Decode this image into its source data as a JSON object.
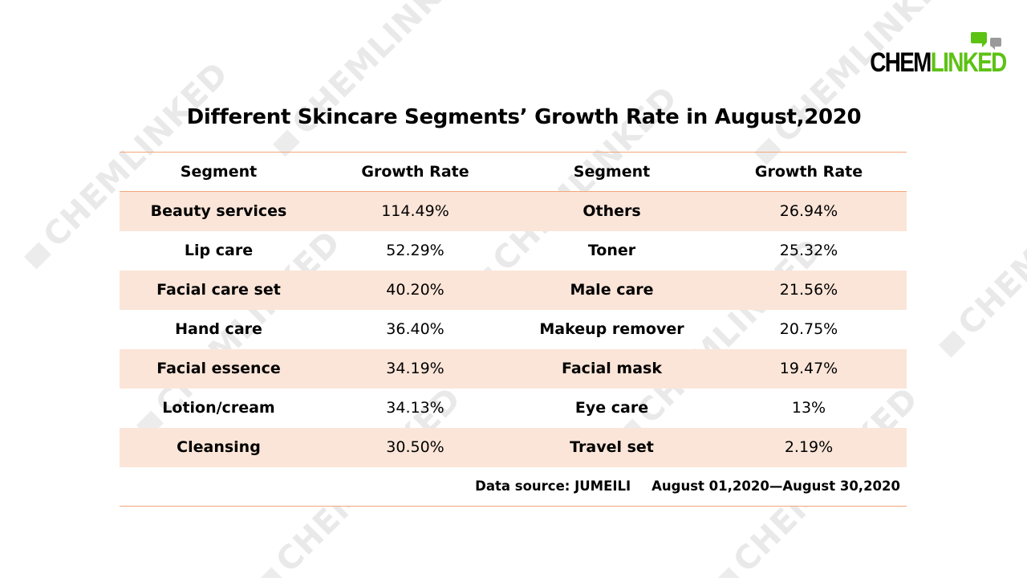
{
  "logo": {
    "text_part1": "CHEM",
    "text_part2": "LINKED",
    "brand_green": "#5cc214",
    "icon": "chat-bubbles-icon"
  },
  "watermark": {
    "text": "CHEMLINKED"
  },
  "title": "Different Skincare Segments’ Growth Rate in August,2020",
  "table": {
    "headers": [
      "Segment",
      "Growth Rate",
      "Segment",
      "Growth Rate"
    ],
    "rows": [
      {
        "segment_left": "Beauty services",
        "rate_left": "114.49%",
        "segment_right": "Others",
        "rate_right": "26.94%"
      },
      {
        "segment_left": "Lip care",
        "rate_left": "52.29%",
        "segment_right": "Toner",
        "rate_right": "25.32%"
      },
      {
        "segment_left": "Facial care set",
        "rate_left": "40.20%",
        "segment_right": "Male care",
        "rate_right": "21.56%"
      },
      {
        "segment_left": "Hand care",
        "rate_left": "36.40%",
        "segment_right": "Makeup remover",
        "rate_right": "20.75%"
      },
      {
        "segment_left": "Facial essence",
        "rate_left": "34.19%",
        "segment_right": "Facial mask",
        "rate_right": "19.47%"
      },
      {
        "segment_left": "Lotion/cream",
        "rate_left": "34.13%",
        "segment_right": "Eye care",
        "rate_right": "13%"
      },
      {
        "segment_left": "Cleansing",
        "rate_left": "30.50%",
        "segment_right": "Travel set",
        "rate_right": "2.19%"
      }
    ],
    "source": "Data source: JUMEILI",
    "date_range": "August 01,2020—August 30,2020",
    "shade_color": "#fbe5d8",
    "rule_color": "#f2a77a"
  }
}
